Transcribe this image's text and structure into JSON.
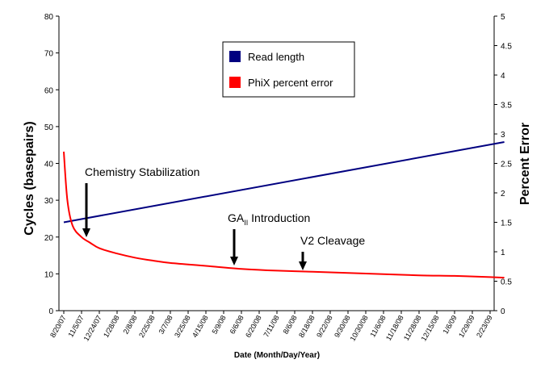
{
  "chart_data": {
    "type": "line",
    "xlabel": "Date (Month/Day/Year)",
    "ylabel_left": "Cycles (basepairs)",
    "ylabel_right": "Percent Error",
    "y_left_lim": [
      0,
      80
    ],
    "y_left_ticks": [
      "0",
      "10",
      "20",
      "30",
      "40",
      "50",
      "60",
      "70",
      "80"
    ],
    "y_right_lim": [
      0,
      5
    ],
    "y_right_ticks": [
      "0",
      "0.5",
      "1",
      "1.5",
      "2",
      "2.5",
      "3",
      "3.5",
      "4",
      "4.5",
      "5"
    ],
    "x_tick_labels": [
      "8/20/07",
      "11/5/07",
      "12/24/07",
      "1/28/08",
      "2/8/08",
      "2/25/08",
      "3/7/08",
      "3/25/08",
      "4/15/08",
      "5/9/08",
      "6/6/08",
      "6/20/08",
      "7/11/08",
      "8/6/08",
      "8/18/08",
      "9/22/08",
      "9/30/08",
      "10/30/08",
      "11/6/08",
      "11/18/08",
      "11/28/08",
      "12/15/08",
      "1/6/09",
      "1/29/09",
      "2/23/09"
    ],
    "grid": false,
    "legend_position": "top-center",
    "series": [
      {
        "name": "Read length",
        "axis": "left",
        "color": "#000080",
        "x_index": [
          0,
          24.8
        ],
        "values": [
          24,
          45.8
        ]
      },
      {
        "name": "PhiX percent error",
        "axis": "right",
        "color": "#ff0000",
        "x_index": [
          0,
          0.2,
          0.5,
          1,
          1.5,
          2,
          3,
          4,
          5,
          6,
          8,
          10,
          12,
          14,
          16,
          18,
          20,
          22,
          24,
          24.8
        ],
        "values": [
          2.7,
          1.88,
          1.44,
          1.25,
          1.15,
          1.06,
          0.97,
          0.9,
          0.85,
          0.81,
          0.76,
          0.71,
          0.68,
          0.66,
          0.64,
          0.62,
          0.6,
          0.59,
          0.57,
          0.56
        ]
      }
    ],
    "annotations": [
      {
        "text": "Chemistry Stabilization",
        "x_index": 1.2
      },
      {
        "text_main": "GA",
        "text_sub": "II",
        "text_tail": " Introduction",
        "x_index": 9.7
      },
      {
        "text": "V2 Cleavage",
        "x_index": 13.7
      }
    ]
  }
}
